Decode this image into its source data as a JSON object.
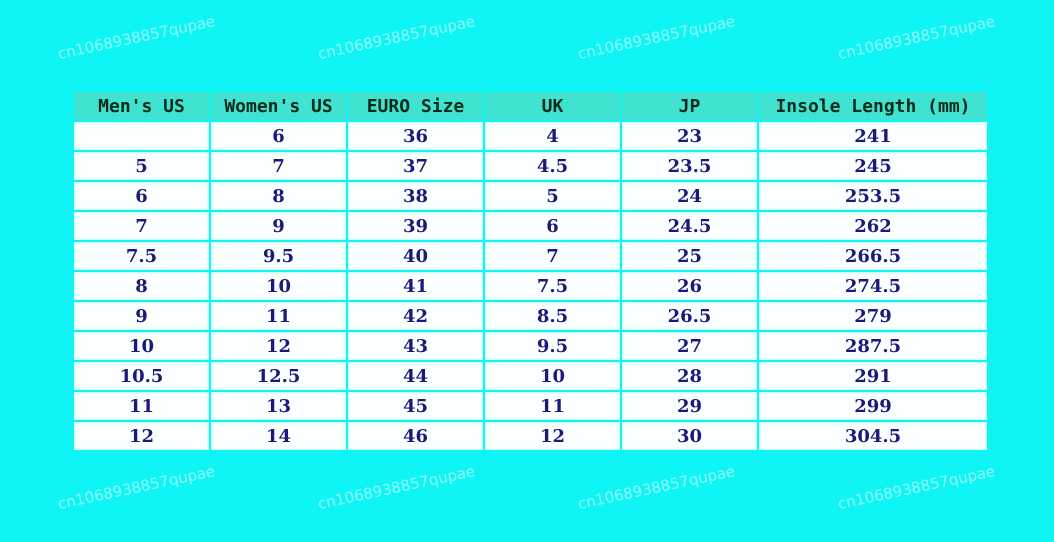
{
  "table": {
    "headers": [
      "Men's US",
      "Women's US",
      "EURO Size",
      "UK",
      "JP",
      "Insole Length (mm)"
    ],
    "rows": [
      [
        "",
        "6",
        "36",
        "4",
        "23",
        "241"
      ],
      [
        "5",
        "7",
        "37",
        "4.5",
        "23.5",
        "245"
      ],
      [
        "6",
        "8",
        "38",
        "5",
        "24",
        "253.5"
      ],
      [
        "7",
        "9",
        "39",
        "6",
        "24.5",
        "262"
      ],
      [
        "7.5",
        "9.5",
        "40",
        "7",
        "25",
        "266.5"
      ],
      [
        "8",
        "10",
        "41",
        "7.5",
        "26",
        "274.5"
      ],
      [
        "9",
        "11",
        "42",
        "8.5",
        "26.5",
        "279"
      ],
      [
        "10",
        "12",
        "43",
        "9.5",
        "27",
        "287.5"
      ],
      [
        "10.5",
        "12.5",
        "44",
        "10",
        "28",
        "291"
      ],
      [
        "11",
        "13",
        "45",
        "11",
        "29",
        "299"
      ],
      [
        "12",
        "14",
        "46",
        "12",
        "30",
        "304.5"
      ]
    ]
  },
  "watermark": "cn1068938857qupae",
  "colors": {
    "background": "#0ff5f5",
    "header": "#3fe3cf",
    "cell": "#fbffff",
    "text": "#1a1a7a"
  }
}
